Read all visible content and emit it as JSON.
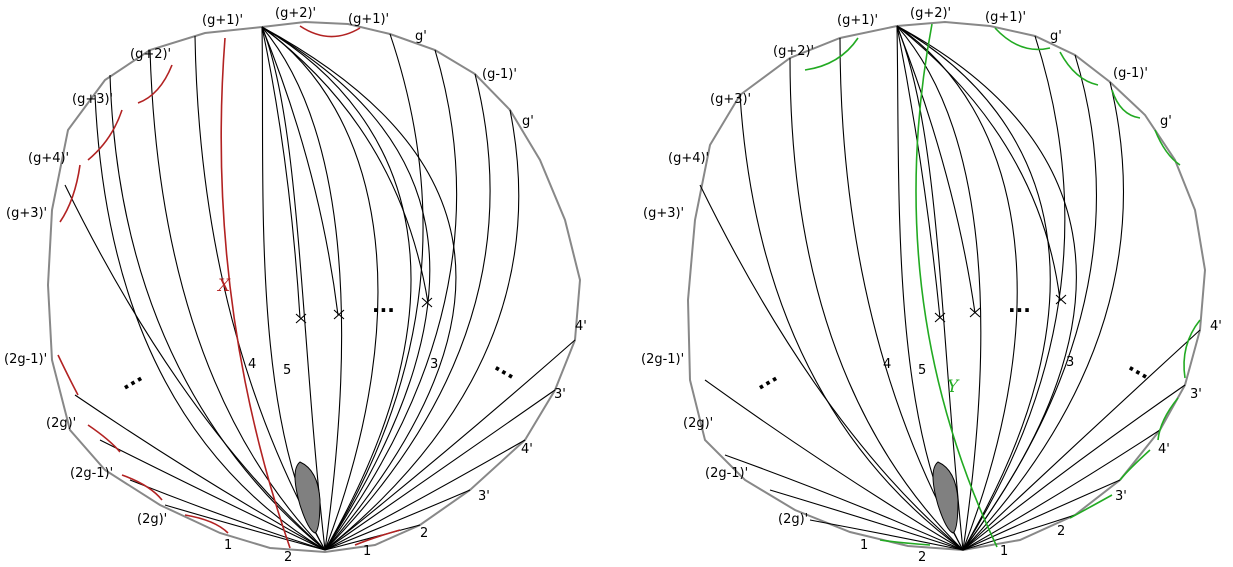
{
  "colors": {
    "boundary": "#888888",
    "arc": "#000000",
    "left_curve": "#b22222",
    "right_curve": "#22aa22",
    "puncture": "#808080"
  },
  "left_panel": {
    "curve_label": "X",
    "boundary_labels": [
      "(g+1)'",
      "(g+2)'",
      "(g+1)'",
      "g'",
      "(g-1)'",
      "g'",
      "(g+2)'",
      "(g+3)'",
      "(g+4)'",
      "(g+3)'",
      "(2g-1)'",
      "(2g)'",
      "(2g-1)'",
      "(2g)'",
      "1",
      "2",
      "1",
      "2",
      "3'",
      "4'",
      "3'",
      "4'"
    ],
    "interior_labels": [
      "4",
      "5",
      "3"
    ],
    "ellipses": [
      "...",
      "...",
      "..."
    ]
  },
  "right_panel": {
    "curve_label": "Y",
    "boundary_labels": [
      "(g+1)'",
      "(g+2)'",
      "(g+1)'",
      "g'",
      "(g-1)'",
      "g'",
      "(g+2)'",
      "(g+3)'",
      "(g+4)'",
      "(g+3)'",
      "(2g-1)'",
      "(2g)'",
      "(2g-1)'",
      "(2g)'",
      "1",
      "2",
      "1",
      "2",
      "3'",
      "4'",
      "3'",
      "4'"
    ],
    "interior_labels": [
      "4",
      "5",
      "3"
    ],
    "ellipses": [
      "...",
      "...",
      "..."
    ]
  }
}
